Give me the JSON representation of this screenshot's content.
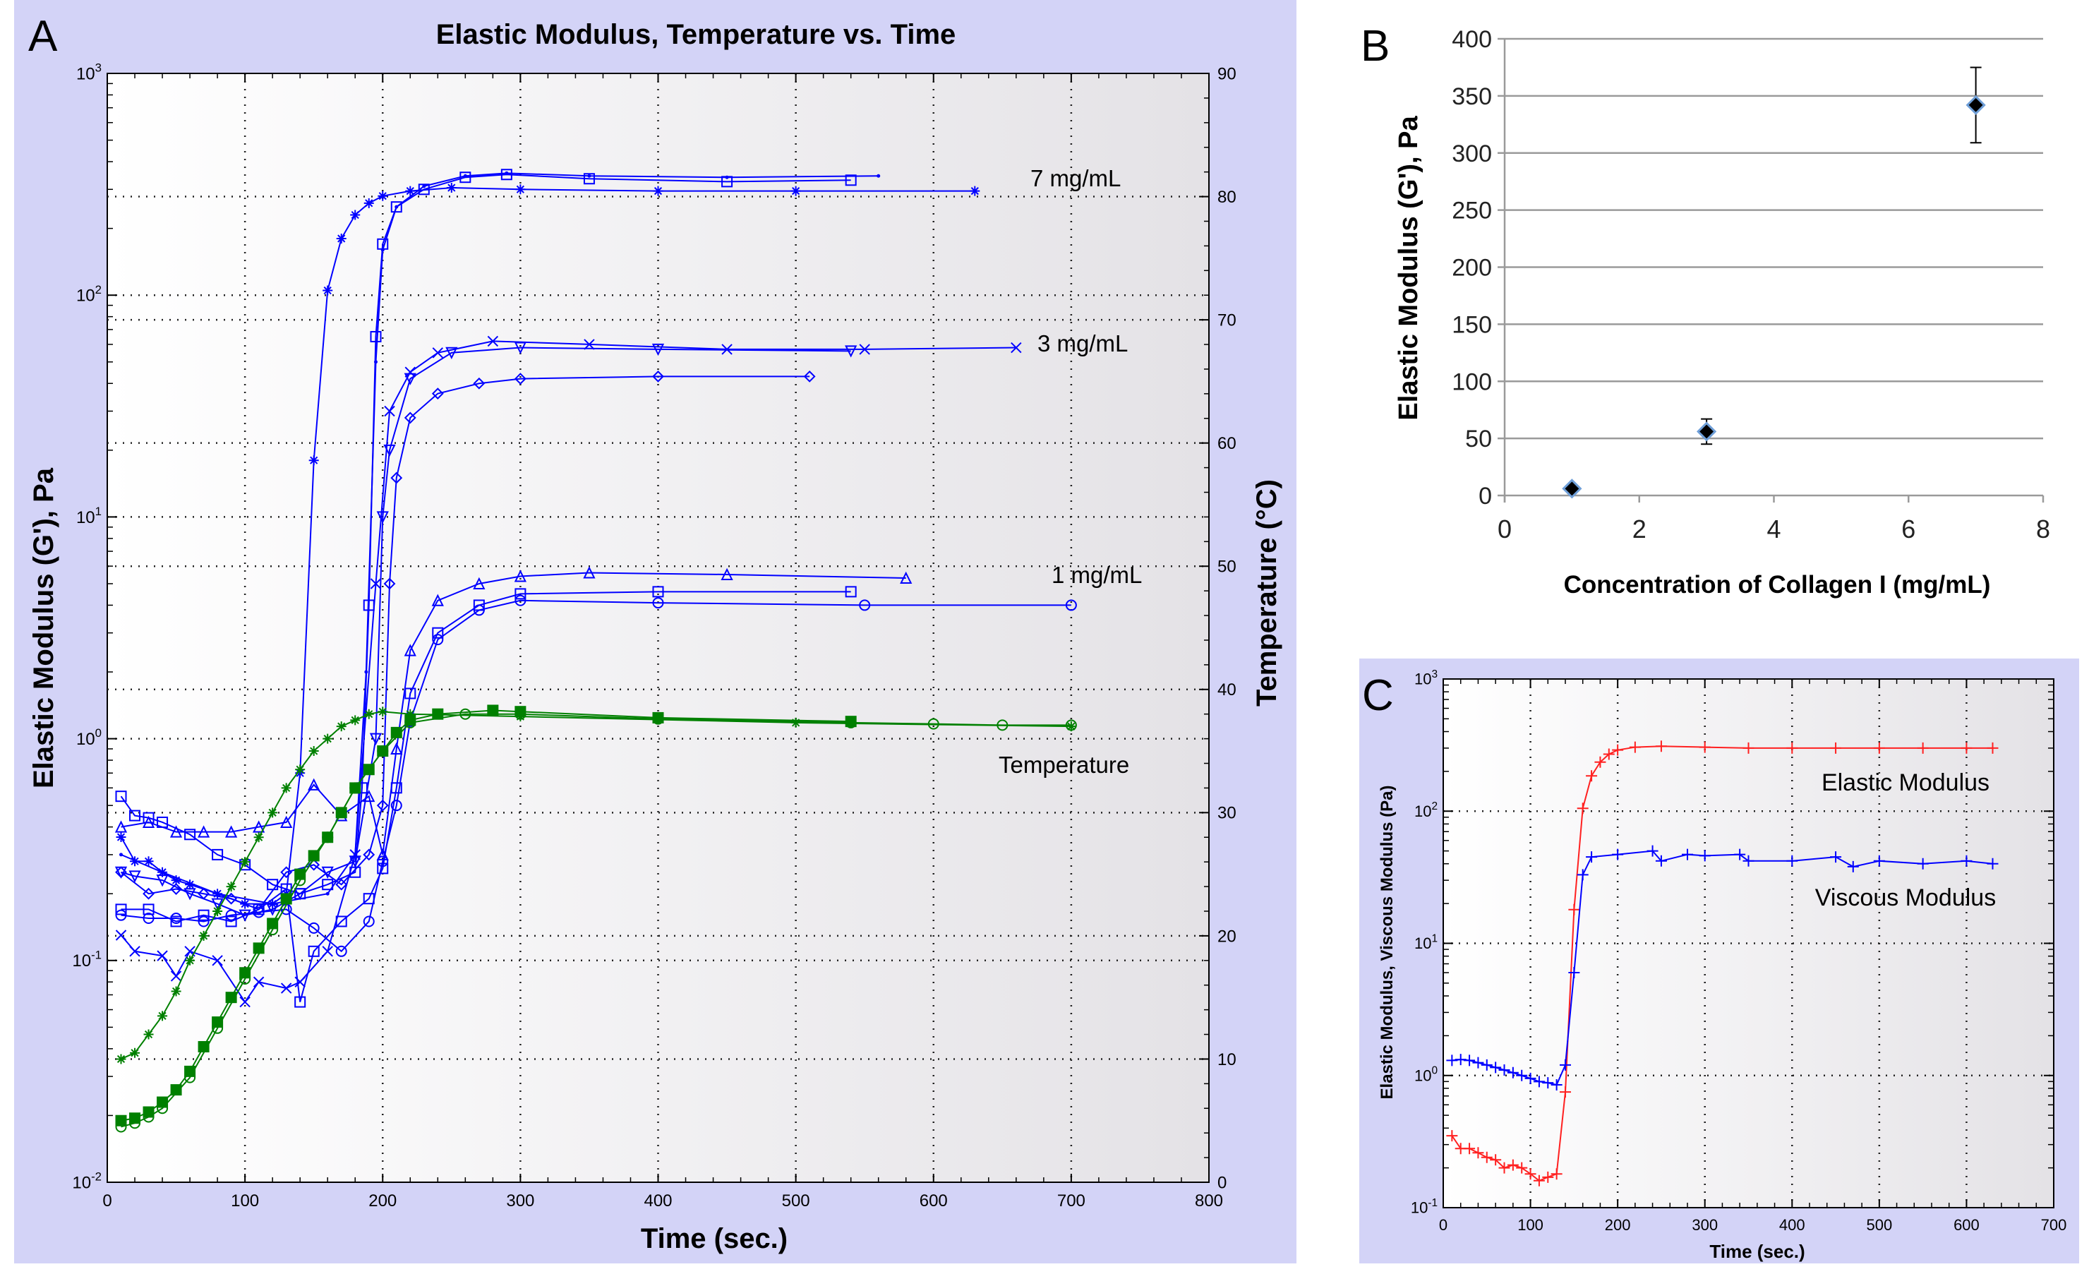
{
  "colors": {
    "panel_bg": "#d3d3f7",
    "blue_series": "#0000ff",
    "green_series": "#008000",
    "red_series": "#ff2020",
    "marker_fill": "#000000",
    "marker_edge": "#6f9fd8"
  },
  "chart_data": [
    {
      "panel_label": "A",
      "type": "line",
      "title": "Elastic Modulus, Temperature vs. Time",
      "xlabel": "Time (sec.)",
      "ylabel": "Elastic Modulus (G'), Pa",
      "y2label": "Temperature (°C)",
      "xlim": [
        0,
        800
      ],
      "ylim": [
        0.01,
        1000
      ],
      "yscale": "log",
      "y2lim": [
        0,
        90
      ],
      "grid": true,
      "xticks": [
        "0",
        "100",
        "200",
        "300",
        "400",
        "500",
        "600",
        "700",
        "800"
      ],
      "yticks": [
        {
          "base": "10",
          "exp": "-2"
        },
        {
          "base": "10",
          "exp": "-1"
        },
        {
          "base": "10",
          "exp": "0"
        },
        {
          "base": "10",
          "exp": "1"
        },
        {
          "base": "10",
          "exp": "2"
        },
        {
          "base": "10",
          "exp": "3"
        }
      ],
      "y2ticks": [
        "0",
        "10",
        "20",
        "30",
        "40",
        "50",
        "60",
        "70",
        "80",
        "90"
      ],
      "annotations": [
        {
          "text": "7 mg/mL",
          "x": 700,
          "y": 340
        },
        {
          "text": "3 mg/mL",
          "x": 700,
          "y": 62
        },
        {
          "text": "1 mg/mL",
          "x": 700,
          "y": 6.6
        },
        {
          "text": "Temperature",
          "x": 700,
          "y": 0.6
        }
      ],
      "series": [
        {
          "axis": "y",
          "marker": "asterisk",
          "color": "#0000ff",
          "x": [
            10,
            20,
            30,
            40,
            50,
            60,
            80,
            100,
            120,
            130,
            140,
            150,
            160,
            170,
            180,
            190,
            200,
            220,
            250,
            300,
            400,
            500,
            630
          ],
          "y": [
            0.36,
            0.28,
            0.28,
            0.25,
            0.23,
            0.22,
            0.2,
            0.18,
            0.18,
            0.2,
            0.7,
            18,
            105,
            180,
            230,
            260,
            280,
            295,
            305,
            300,
            295,
            295,
            295
          ]
        },
        {
          "axis": "y",
          "marker": "square",
          "color": "#0000ff",
          "x": [
            10,
            20,
            30,
            40,
            60,
            80,
            100,
            120,
            140,
            160,
            180,
            185,
            190,
            195,
            200,
            210,
            230,
            260,
            290,
            350,
            450,
            540
          ],
          "y": [
            0.55,
            0.45,
            0.44,
            0.42,
            0.37,
            0.3,
            0.27,
            0.22,
            0.2,
            0.22,
            0.25,
            0.6,
            4,
            65,
            170,
            250,
            300,
            340,
            350,
            335,
            325,
            330
          ]
        },
        {
          "axis": "y",
          "marker": "dot",
          "color": "#0000ff",
          "x": [
            10,
            40,
            80,
            120,
            160,
            180,
            188,
            195,
            200,
            210,
            230,
            260,
            290,
            350,
            450,
            560
          ],
          "y": [
            0.3,
            0.25,
            0.2,
            0.18,
            0.2,
            0.3,
            2,
            50,
            160,
            250,
            310,
            345,
            355,
            345,
            340,
            345
          ]
        },
        {
          "axis": "y",
          "marker": "x",
          "color": "#0000ff",
          "x": [
            10,
            20,
            40,
            50,
            60,
            80,
            100,
            110,
            130,
            140,
            160,
            180,
            195,
            205,
            220,
            240,
            280,
            350,
            450,
            550,
            660
          ],
          "y": [
            0.13,
            0.11,
            0.105,
            0.085,
            0.11,
            0.1,
            0.065,
            0.08,
            0.075,
            0.08,
            0.11,
            0.3,
            5,
            30,
            45,
            55,
            62,
            60,
            57,
            57,
            58
          ]
        },
        {
          "axis": "y",
          "marker": "triangle-down",
          "color": "#0000ff",
          "x": [
            10,
            20,
            40,
            60,
            80,
            100,
            120,
            140,
            160,
            180,
            195,
            200,
            205,
            220,
            250,
            300,
            400,
            540
          ],
          "y": [
            0.25,
            0.24,
            0.23,
            0.2,
            0.18,
            0.16,
            0.17,
            0.2,
            0.25,
            0.28,
            1,
            10,
            20,
            42,
            55,
            58,
            57,
            56
          ]
        },
        {
          "axis": "y",
          "marker": "diamond",
          "color": "#0000ff",
          "x": [
            10,
            30,
            50,
            70,
            90,
            110,
            130,
            150,
            170,
            190,
            200,
            205,
            210,
            220,
            240,
            270,
            300,
            400,
            510
          ],
          "y": [
            0.25,
            0.2,
            0.21,
            0.2,
            0.19,
            0.17,
            0.25,
            0.27,
            0.22,
            0.3,
            0.5,
            5,
            15,
            28,
            36,
            40,
            42,
            43,
            43
          ]
        },
        {
          "axis": "y",
          "marker": "triangle",
          "color": "#0000ff",
          "x": [
            10,
            30,
            50,
            70,
            90,
            110,
            130,
            150,
            170,
            190,
            200,
            210,
            220,
            240,
            270,
            300,
            350,
            450,
            580
          ],
          "y": [
            0.4,
            0.42,
            0.38,
            0.38,
            0.38,
            0.4,
            0.42,
            0.62,
            0.45,
            0.55,
            0.3,
            0.9,
            2.5,
            4.2,
            5,
            5.4,
            5.6,
            5.5,
            5.3
          ]
        },
        {
          "axis": "y",
          "marker": "square",
          "color": "#0000ff",
          "x": [
            10,
            30,
            50,
            70,
            90,
            110,
            130,
            140,
            150,
            170,
            190,
            200,
            210,
            220,
            240,
            270,
            300,
            400,
            540
          ],
          "y": [
            0.17,
            0.17,
            0.15,
            0.16,
            0.15,
            0.17,
            0.21,
            0.065,
            0.11,
            0.15,
            0.19,
            0.26,
            0.6,
            1.6,
            3,
            4,
            4.5,
            4.6,
            4.6
          ]
        },
        {
          "axis": "y",
          "marker": "circle",
          "color": "#0000ff",
          "x": [
            10,
            30,
            50,
            70,
            90,
            110,
            130,
            150,
            170,
            190,
            200,
            210,
            220,
            240,
            270,
            300,
            400,
            550,
            700
          ],
          "y": [
            0.16,
            0.155,
            0.155,
            0.15,
            0.16,
            0.165,
            0.17,
            0.14,
            0.11,
            0.15,
            0.28,
            0.5,
            1.2,
            2.8,
            3.8,
            4.2,
            4.1,
            4.0,
            4.0
          ]
        },
        {
          "axis": "y2",
          "marker": "asterisk",
          "color": "#008000",
          "x": [
            10,
            20,
            30,
            40,
            50,
            60,
            70,
            80,
            90,
            100,
            110,
            120,
            130,
            140,
            150,
            160,
            170,
            180,
            190,
            200,
            220,
            300,
            500,
            700
          ],
          "y": [
            10,
            10.5,
            12,
            13.5,
            15.5,
            18,
            20,
            22,
            24,
            26,
            28,
            30,
            32,
            33.5,
            35,
            36,
            37,
            37.5,
            38,
            38.2,
            38,
            37.8,
            37.3,
            37
          ]
        },
        {
          "axis": "y2",
          "marker": "square-filled",
          "color": "#008000",
          "x": [
            10,
            20,
            30,
            40,
            50,
            60,
            70,
            80,
            90,
            100,
            110,
            120,
            130,
            140,
            150,
            160,
            170,
            180,
            190,
            200,
            210,
            220,
            240,
            280,
            300,
            400,
            540
          ],
          "y": [
            5,
            5.2,
            5.7,
            6.5,
            7.5,
            9,
            11,
            13,
            15,
            17,
            19,
            21,
            23,
            25,
            26.5,
            28,
            30,
            32,
            33.5,
            35,
            36.5,
            37.5,
            38,
            38.3,
            38.2,
            37.7,
            37.4
          ]
        },
        {
          "axis": "y2",
          "marker": "circle",
          "color": "#008000",
          "x": [
            10,
            20,
            30,
            40,
            60,
            80,
            100,
            120,
            140,
            160,
            180,
            200,
            220,
            260,
            300,
            400,
            540,
            600,
            650,
            700
          ],
          "y": [
            4.5,
            4.8,
            5.3,
            6,
            8.5,
            12.5,
            16.5,
            20.5,
            24.5,
            28,
            32,
            35,
            37.3,
            38,
            38,
            37.6,
            37.3,
            37.2,
            37.1,
            37.1
          ]
        }
      ]
    },
    {
      "panel_label": "B",
      "type": "scatter",
      "xlabel": "Concentration of Collagen I (mg/mL)",
      "ylabel": "Elastic Modulus (G'), Pa",
      "xlim": [
        0,
        8
      ],
      "ylim": [
        0,
        400
      ],
      "grid": true,
      "xticks": [
        "0",
        "2",
        "4",
        "6",
        "8"
      ],
      "yticks": [
        "0",
        "50",
        "100",
        "150",
        "200",
        "250",
        "300",
        "350",
        "400"
      ],
      "points": [
        {
          "x": 1,
          "y": 6,
          "err": 0
        },
        {
          "x": 3,
          "y": 56,
          "err": 11
        },
        {
          "x": 7,
          "y": 342,
          "err": 33
        }
      ]
    },
    {
      "panel_label": "C",
      "type": "line",
      "xlabel": "Time (sec.)",
      "ylabel": "Elastic Modulus, Viscous Modulus (Pa)",
      "xlim": [
        0,
        700
      ],
      "ylim": [
        0.1,
        1000
      ],
      "yscale": "log",
      "grid": true,
      "xticks": [
        "0",
        "100",
        "200",
        "300",
        "400",
        "500",
        "600",
        "700"
      ],
      "yticks": [
        {
          "base": "10",
          "exp": "-1"
        },
        {
          "base": "10",
          "exp": "0"
        },
        {
          "base": "10",
          "exp": "1"
        },
        {
          "base": "10",
          "exp": "2"
        },
        {
          "base": "10",
          "exp": "3"
        }
      ],
      "annotations": [
        {
          "text": "Elastic Modulus",
          "x": 530,
          "y": 150
        },
        {
          "text": "Viscous Modulus",
          "x": 530,
          "y": 20
        }
      ],
      "series": [
        {
          "name": "Elastic Modulus",
          "marker": "plus",
          "color": "#ff2020",
          "x": [
            10,
            20,
            30,
            40,
            50,
            60,
            70,
            80,
            90,
            100,
            110,
            120,
            130,
            140,
            150,
            160,
            170,
            180,
            190,
            200,
            220,
            250,
            300,
            350,
            400,
            450,
            500,
            550,
            600,
            630
          ],
          "y": [
            0.35,
            0.28,
            0.28,
            0.26,
            0.24,
            0.23,
            0.2,
            0.21,
            0.2,
            0.18,
            0.16,
            0.17,
            0.18,
            0.75,
            18,
            105,
            185,
            235,
            270,
            290,
            305,
            310,
            305,
            300,
            300,
            300,
            300,
            300,
            300,
            300
          ]
        },
        {
          "name": "Viscous Modulus",
          "marker": "plus",
          "color": "#0000ff",
          "x": [
            10,
            20,
            30,
            40,
            50,
            60,
            70,
            80,
            90,
            100,
            110,
            120,
            130,
            140,
            150,
            160,
            170,
            200,
            240,
            250,
            280,
            300,
            340,
            350,
            400,
            450,
            470,
            500,
            550,
            600,
            630
          ],
          "y": [
            1.3,
            1.32,
            1.3,
            1.25,
            1.2,
            1.15,
            1.1,
            1.05,
            1.0,
            0.95,
            0.9,
            0.88,
            0.85,
            1.2,
            6,
            33,
            45,
            47,
            50,
            42,
            47,
            46,
            47,
            42,
            42,
            45,
            38,
            42,
            40,
            42,
            40
          ]
        }
      ]
    }
  ]
}
